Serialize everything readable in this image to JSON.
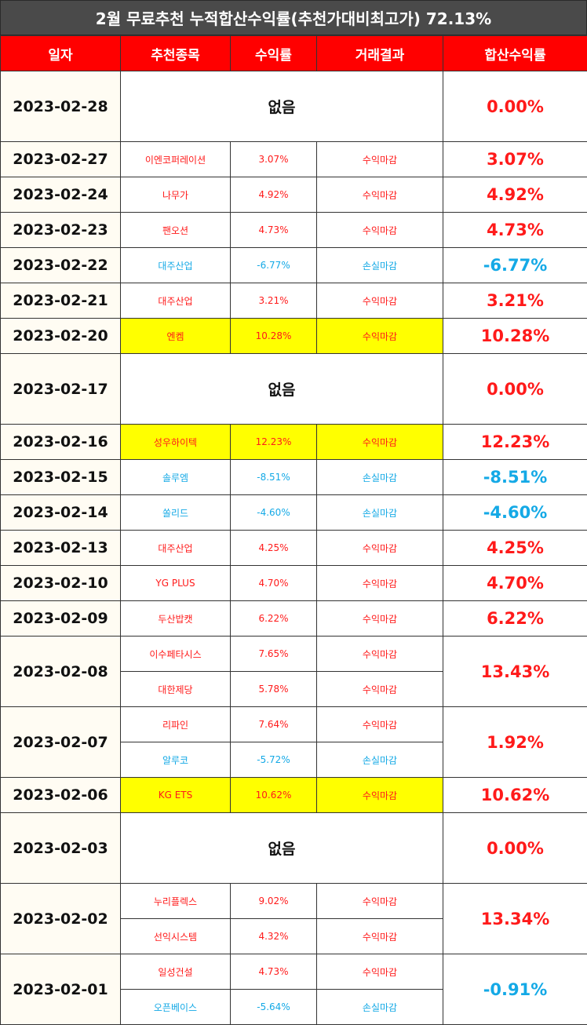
{
  "title": "2월 무료추천 누적합산수익률(추천가대비최고가) 72.13%",
  "headers": [
    "일자",
    "추천종목",
    "수익률",
    "거래결과",
    "합산수익률"
  ],
  "days": [
    {
      "date": "2023-02-28",
      "none": "없음",
      "total": "0.00%",
      "total_sign": "zero",
      "picks": []
    },
    {
      "date": "2023-02-27",
      "total": "3.07%",
      "total_sign": "gain",
      "picks": [
        {
          "name": "이엔코퍼레이션",
          "ret": "3.07%",
          "result": "수익마감",
          "sign": "gain",
          "highlight": false
        }
      ]
    },
    {
      "date": "2023-02-24",
      "total": "4.92%",
      "total_sign": "gain",
      "picks": [
        {
          "name": "나무가",
          "ret": "4.92%",
          "result": "수익마감",
          "sign": "gain",
          "highlight": false
        }
      ]
    },
    {
      "date": "2023-02-23",
      "total": "4.73%",
      "total_sign": "gain",
      "picks": [
        {
          "name": "팬오션",
          "ret": "4.73%",
          "result": "수익마감",
          "sign": "gain",
          "highlight": false
        }
      ]
    },
    {
      "date": "2023-02-22",
      "total": "-6.77%",
      "total_sign": "loss",
      "picks": [
        {
          "name": "대주산업",
          "ret": "-6.77%",
          "result": "손실마감",
          "sign": "loss",
          "highlight": false
        }
      ]
    },
    {
      "date": "2023-02-21",
      "total": "3.21%",
      "total_sign": "gain",
      "picks": [
        {
          "name": "대주산업",
          "ret": "3.21%",
          "result": "수익마감",
          "sign": "gain",
          "highlight": false
        }
      ]
    },
    {
      "date": "2023-02-20",
      "total": "10.28%",
      "total_sign": "gain",
      "picks": [
        {
          "name": "엔켐",
          "ret": "10.28%",
          "result": "수익마감",
          "sign": "gain",
          "highlight": true
        }
      ]
    },
    {
      "date": "2023-02-17",
      "none": "없음",
      "total": "0.00%",
      "total_sign": "zero",
      "picks": []
    },
    {
      "date": "2023-02-16",
      "total": "12.23%",
      "total_sign": "gain",
      "picks": [
        {
          "name": "성우하이텍",
          "ret": "12.23%",
          "result": "수익마감",
          "sign": "gain",
          "highlight": true
        }
      ]
    },
    {
      "date": "2023-02-15",
      "total": "-8.51%",
      "total_sign": "loss",
      "picks": [
        {
          "name": "솔루엠",
          "ret": "-8.51%",
          "result": "손실마감",
          "sign": "loss",
          "highlight": false
        }
      ]
    },
    {
      "date": "2023-02-14",
      "total": "-4.60%",
      "total_sign": "loss",
      "picks": [
        {
          "name": "쏠리드",
          "ret": "-4.60%",
          "result": "손실마감",
          "sign": "loss",
          "highlight": false
        }
      ]
    },
    {
      "date": "2023-02-13",
      "total": "4.25%",
      "total_sign": "gain",
      "picks": [
        {
          "name": "대주산업",
          "ret": "4.25%",
          "result": "수익마감",
          "sign": "gain",
          "highlight": false
        }
      ]
    },
    {
      "date": "2023-02-10",
      "total": "4.70%",
      "total_sign": "gain",
      "picks": [
        {
          "name": "YG PLUS",
          "ret": "4.70%",
          "result": "수익마감",
          "sign": "gain",
          "highlight": false
        }
      ]
    },
    {
      "date": "2023-02-09",
      "total": "6.22%",
      "total_sign": "gain",
      "picks": [
        {
          "name": "두산밥캣",
          "ret": "6.22%",
          "result": "수익마감",
          "sign": "gain",
          "highlight": false
        }
      ]
    },
    {
      "date": "2023-02-08",
      "total": "13.43%",
      "total_sign": "gain",
      "picks": [
        {
          "name": "이수페타시스",
          "ret": "7.65%",
          "result": "수익마감",
          "sign": "gain",
          "highlight": false
        },
        {
          "name": "대한제당",
          "ret": "5.78%",
          "result": "수익마감",
          "sign": "gain",
          "highlight": false
        }
      ]
    },
    {
      "date": "2023-02-07",
      "total": "1.92%",
      "total_sign": "gain",
      "picks": [
        {
          "name": "리파인",
          "ret": "7.64%",
          "result": "수익마감",
          "sign": "gain",
          "highlight": false
        },
        {
          "name": "알루코",
          "ret": "-5.72%",
          "result": "손실마감",
          "sign": "loss",
          "highlight": false
        }
      ]
    },
    {
      "date": "2023-02-06",
      "total": "10.62%",
      "total_sign": "gain",
      "picks": [
        {
          "name": "KG ETS",
          "ret": "10.62%",
          "result": "수익마감",
          "sign": "gain",
          "highlight": true
        }
      ]
    },
    {
      "date": "2023-02-03",
      "none": "없음",
      "total": "0.00%",
      "total_sign": "zero",
      "picks": []
    },
    {
      "date": "2023-02-02",
      "total": "13.34%",
      "total_sign": "gain",
      "picks": [
        {
          "name": "누리플렉스",
          "ret": "9.02%",
          "result": "수익마감",
          "sign": "gain",
          "highlight": false
        },
        {
          "name": "선익시스템",
          "ret": "4.32%",
          "result": "수익마감",
          "sign": "gain",
          "highlight": false
        }
      ]
    },
    {
      "date": "2023-02-01",
      "total": "-0.91%",
      "total_sign": "loss",
      "picks": [
        {
          "name": "일성건설",
          "ret": "4.73%",
          "result": "수익마감",
          "sign": "gain",
          "highlight": false
        },
        {
          "name": "오픈베이스",
          "ret": "-5.64%",
          "result": "손실마감",
          "sign": "loss",
          "highlight": false
        }
      ]
    }
  ]
}
